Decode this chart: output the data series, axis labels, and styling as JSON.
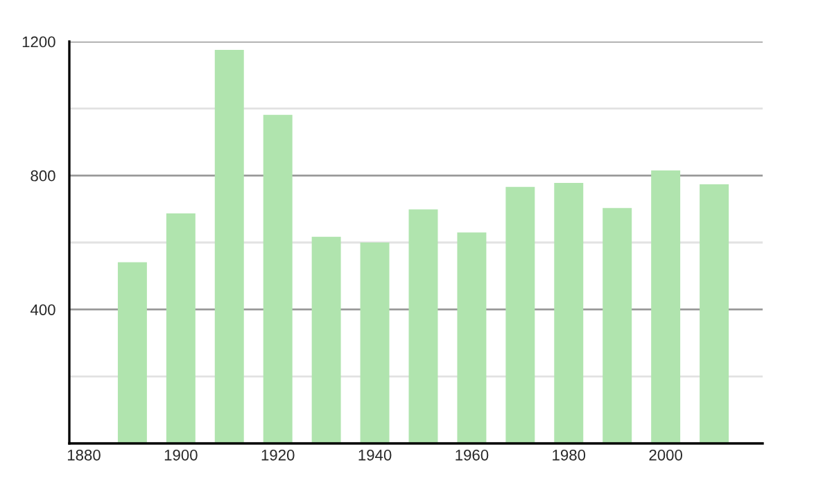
{
  "chart_data": {
    "type": "bar",
    "x": [
      1890,
      1900,
      1910,
      1920,
      1930,
      1940,
      1950,
      1960,
      1970,
      1980,
      1990,
      2000,
      2010
    ],
    "values": [
      541,
      687,
      1175,
      981,
      617,
      600,
      699,
      630,
      766,
      778,
      703,
      815,
      774
    ],
    "color": "#b0e4ae",
    "xlim": [
      1877,
      2020
    ],
    "xticks": [
      1880,
      1900,
      1920,
      1940,
      1960,
      1980,
      2000
    ],
    "ylim": [
      0,
      1200
    ],
    "yticks": [
      {
        "value": 0,
        "label": null
      },
      {
        "value": 200,
        "label": null
      },
      400,
      {
        "value": 600,
        "label": null
      },
      800,
      {
        "value": 1000,
        "label": null
      },
      1200
    ],
    "grid": "y",
    "legend": false
  }
}
